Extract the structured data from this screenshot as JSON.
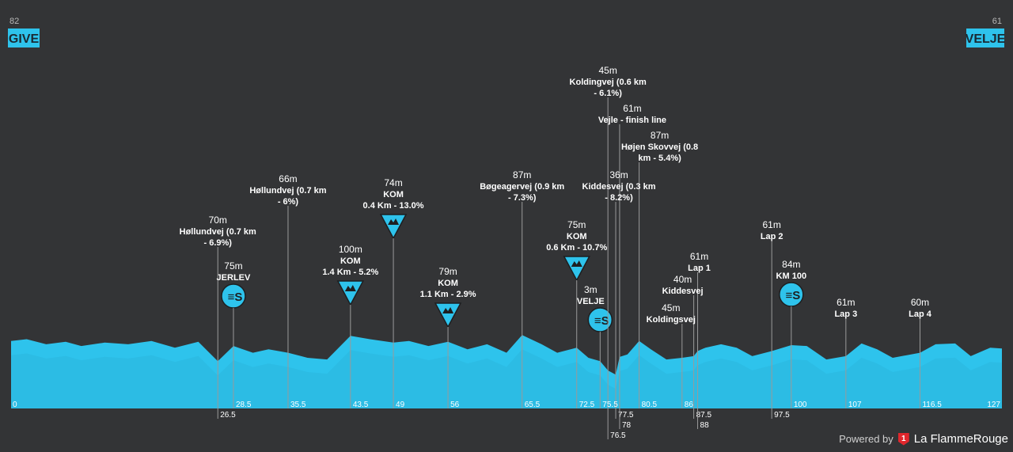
{
  "start": {
    "alt": "82",
    "name": "GIVE"
  },
  "finish": {
    "alt": "61",
    "name": "VELJE"
  },
  "credit": {
    "powered": "Powered by",
    "brand": "La FlammeRouge",
    "logo": "1"
  },
  "chart_data": {
    "type": "area",
    "title": "",
    "xlabel": "",
    "ylabel": "",
    "xlim": [
      0,
      127
    ],
    "x_ticks": [
      0,
      26.5,
      28.5,
      35.5,
      43.5,
      49,
      56,
      65.5,
      72.5,
      75.5,
      76.5,
      77.5,
      78,
      80.5,
      86,
      87.5,
      88,
      97.5,
      100,
      107,
      116.5,
      127
    ],
    "x_tick_labels": [
      "0",
      "26.5",
      "28.5",
      "35.5",
      "43.5",
      "49",
      "56",
      "65.5",
      "72.5",
      "75.5",
      "76.5",
      "77.5",
      "78",
      "80.5",
      "86",
      "87.5",
      "88",
      "97.5",
      "100",
      "107",
      "116.5",
      "127"
    ],
    "profile": {
      "x": [
        0,
        2,
        4.5,
        7,
        9,
        12,
        15,
        18,
        21,
        24,
        26.5,
        28.5,
        31,
        33,
        35.5,
        38,
        40.5,
        43.5,
        46,
        49,
        51,
        53.5,
        56,
        58.5,
        61,
        63.5,
        65.5,
        68,
        70,
        72.5,
        74,
        75.5,
        76.5,
        77.5,
        78,
        79,
        80.5,
        82,
        84,
        86,
        87.5,
        88,
        89,
        91,
        93,
        95,
        97.5,
        100,
        102,
        104.5,
        107,
        109,
        111,
        113,
        116.5,
        118.5,
        121,
        123,
        125.5,
        127
      ],
      "y": [
        80,
        82,
        76,
        79,
        74,
        78,
        76,
        80,
        72,
        79,
        56,
        74,
        66,
        70,
        66,
        60,
        58,
        86,
        82,
        78,
        80,
        74,
        79,
        70,
        76,
        66,
        87,
        76,
        66,
        72,
        60,
        56,
        45,
        40,
        61,
        64,
        80,
        70,
        58,
        60,
        62,
        68,
        72,
        76,
        72,
        62,
        68,
        75,
        74,
        58,
        62,
        77,
        70,
        60,
        66,
        76,
        77,
        62,
        72,
        71
      ]
    },
    "annotations": [
      {
        "x": 26.5,
        "alt": "70m",
        "lines": [
          "Høllundvej (0.7 km",
          "- 6.9%)"
        ],
        "icon": "none"
      },
      {
        "x": 28.5,
        "alt": "75m",
        "lines": [
          "JERLEV"
        ],
        "icon": "sprint"
      },
      {
        "x": 35.5,
        "alt": "66m",
        "lines": [
          "Høllundvej (0.7 km",
          "- 6%)"
        ],
        "icon": "none"
      },
      {
        "x": 43.5,
        "alt": "100m",
        "lines": [
          "KOM",
          "1.4 Km - 5.2%"
        ],
        "icon": "kom"
      },
      {
        "x": 49,
        "alt": "74m",
        "lines": [
          "KOM",
          "0.4 Km - 13.0%"
        ],
        "icon": "kom"
      },
      {
        "x": 56,
        "alt": "79m",
        "lines": [
          "KOM",
          "1.1 Km - 2.9%"
        ],
        "icon": "kom"
      },
      {
        "x": 65.5,
        "alt": "87m",
        "lines": [
          "Bøgeagervej (0.9 km",
          "- 7.3%)"
        ],
        "icon": "none"
      },
      {
        "x": 72.5,
        "alt": "75m",
        "lines": [
          "KOM",
          "0.6 Km - 10.7%"
        ],
        "icon": "kom"
      },
      {
        "x": 75.5,
        "alt": "3m",
        "lines": [
          "VELJE"
        ],
        "icon": "sprint"
      },
      {
        "x": 76.5,
        "alt": "45m",
        "lines": [
          "Koldingvej (0.6 km",
          "- 6.1%)"
        ],
        "icon": "none"
      },
      {
        "x": 77.5,
        "alt": "36m",
        "lines": [
          "Kiddesvej (0.3 km",
          "- 8.2%)"
        ],
        "icon": "none"
      },
      {
        "x": 78,
        "alt": "61m",
        "lines": [
          "Vejle - finish line"
        ],
        "icon": "none"
      },
      {
        "x": 80.5,
        "alt": "87m",
        "lines": [
          "Højen Skovvej (0.8",
          "km - 5.4%)"
        ],
        "icon": "none"
      },
      {
        "x": 86,
        "alt": "45m",
        "lines": [
          "Koldingsvej"
        ],
        "icon": "none"
      },
      {
        "x": 87.5,
        "alt": "40m",
        "lines": [
          "Kiddesvej"
        ],
        "icon": "none"
      },
      {
        "x": 88,
        "alt": "61m",
        "lines": [
          "Lap 1"
        ],
        "icon": "none"
      },
      {
        "x": 97.5,
        "alt": "61m",
        "lines": [
          "Lap 2"
        ],
        "icon": "none"
      },
      {
        "x": 100,
        "alt": "84m",
        "lines": [
          "KM 100"
        ],
        "icon": "sprint"
      },
      {
        "x": 107,
        "alt": "61m",
        "lines": [
          "Lap 3"
        ],
        "icon": "none"
      },
      {
        "x": 116.5,
        "alt": "60m",
        "lines": [
          "Lap 4"
        ],
        "icon": "none"
      }
    ],
    "colors": {
      "profile": "#2ec3ec",
      "profile_shade": "#27b0d8",
      "background": "#333436",
      "guide": "#9a9a9a",
      "icon": "#2ec3ec"
    },
    "grid": false,
    "legend": "none"
  }
}
